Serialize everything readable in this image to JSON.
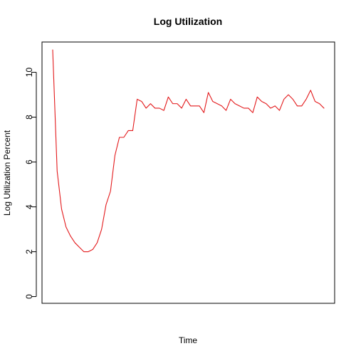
{
  "chart_data": {
    "type": "line",
    "title": "Log Utilization",
    "xlabel": "Time",
    "ylabel": "Log Utilization Percent",
    "ylim": [
      -0.3,
      11.35
    ],
    "yticks": [
      0,
      2,
      4,
      6,
      8,
      10
    ],
    "xticks": [],
    "grid": false,
    "legend": "none",
    "series": [
      {
        "name": "Log Utilization",
        "color": "#e31a1c",
        "values": [
          11.0,
          5.6,
          3.9,
          3.1,
          2.7,
          2.4,
          2.2,
          2.0,
          2.0,
          2.1,
          2.4,
          3.0,
          4.1,
          4.7,
          6.3,
          7.1,
          7.1,
          7.4,
          7.4,
          8.8,
          8.7,
          8.4,
          8.6,
          8.4,
          8.4,
          8.3,
          8.9,
          8.6,
          8.6,
          8.4,
          8.8,
          8.5,
          8.5,
          8.5,
          8.2,
          9.1,
          8.7,
          8.6,
          8.5,
          8.3,
          8.8,
          8.6,
          8.5,
          8.4,
          8.4,
          8.2,
          8.9,
          8.7,
          8.6,
          8.4,
          8.5,
          8.3,
          8.8,
          9.0,
          8.8,
          8.5,
          8.5,
          8.8,
          9.2,
          8.7,
          8.6,
          8.4
        ]
      }
    ]
  }
}
